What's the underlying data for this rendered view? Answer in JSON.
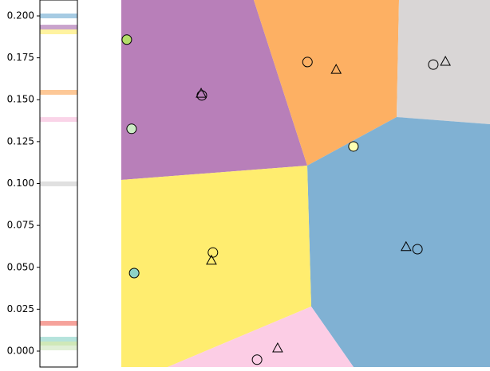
{
  "chart_data": [
    {
      "type": "colorbar",
      "ylim": [
        -0.0095,
        0.2095
      ],
      "yticks": [
        {
          "value": 0,
          "label": "0.000"
        },
        {
          "value": 0.025,
          "label": "0.025"
        },
        {
          "value": 0.05,
          "label": "0.050"
        },
        {
          "value": 0.075,
          "label": "0.075"
        },
        {
          "value": 0.1,
          "label": "0.100"
        },
        {
          "value": 0.125,
          "label": "0.125"
        },
        {
          "value": 0.15,
          "label": "0.150"
        },
        {
          "value": 0.175,
          "label": "0.175"
        },
        {
          "value": 0.2,
          "label": "0.200"
        }
      ],
      "values": [
        0.2,
        0.1933,
        0.1905,
        0.1544,
        0.1382,
        0.0998,
        0.0166,
        0.0071,
        0.0043,
        0.0019
      ],
      "colors": [
        "#a6cbe3",
        "#c9a3cc",
        "#fff3a0",
        "#fdc897",
        "#fad4e8",
        "#e0e0e0",
        "#f6a29b",
        "#b5e3dc",
        "#cfe8b8",
        "#e0efd6"
      ]
    },
    {
      "type": "scatter",
      "xlim": [
        0,
        1
      ],
      "ylim": [
        0,
        1
      ],
      "circles": {
        "x": [
          0.015,
          0.028,
          0.219,
          0.506,
          0.848,
          0.631,
          0.249,
          0.035,
          0.805,
          0.369
        ],
        "y": [
          0.892,
          0.649,
          0.74,
          0.831,
          0.824,
          0.601,
          0.312,
          0.256,
          0.321,
          0.02
        ],
        "colors": [
          "#b3de69",
          "#ccebc5",
          "none",
          "none",
          "none",
          "#ffffb3",
          "none",
          "#8dd3c7",
          "none",
          "none"
        ]
      },
      "triangles": {
        "x": [
          0.217,
          0.584,
          0.881,
          0.245,
          0.774,
          0.425
        ],
        "y": [
          0.746,
          0.811,
          0.833,
          0.291,
          0.328,
          0.052
        ]
      }
    }
  ]
}
